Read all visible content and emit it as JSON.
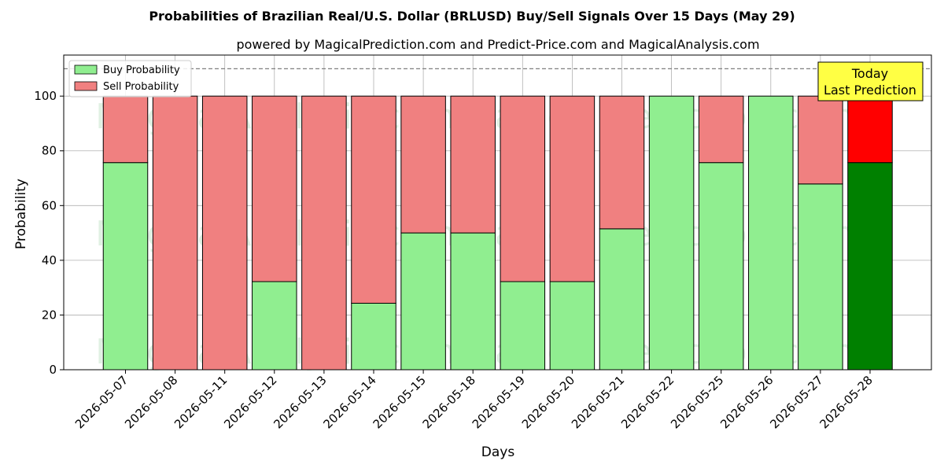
{
  "title": "Probabilities of Brazilian Real/U.S. Dollar (BRLUSD) Buy/Sell Signals Over 15 Days (May 29)",
  "subtitle": "powered by MagicalPrediction.com and Predict-Price.com and MagicalAnalysis.com",
  "watermark_texts": [
    "MagicalAnalysis.com",
    "MagicalPrediction.com"
  ],
  "annotation": {
    "line1": "Today",
    "line2": "Last Prediction"
  },
  "colors": {
    "buy": "#90ee90",
    "sell": "#f08080",
    "buy_today": "#008000",
    "sell_today": "#ff0000",
    "annotation_bg": "#ffff44"
  },
  "chart_data": {
    "type": "bar",
    "stacked": true,
    "xlabel": "Days",
    "ylabel": "Probability",
    "ylim": [
      0,
      115
    ],
    "yticks": [
      0,
      20,
      40,
      60,
      80,
      100
    ],
    "reference_line": 110,
    "grid": true,
    "legend_position": "top-left",
    "categories": [
      "2026-05-07",
      "2026-05-08",
      "2026-05-11",
      "2026-05-12",
      "2026-05-13",
      "2026-05-14",
      "2026-05-15",
      "2026-05-18",
      "2026-05-19",
      "2026-05-20",
      "2026-05-21",
      "2026-05-22",
      "2026-05-25",
      "2026-05-26",
      "2026-05-27",
      "2026-05-28"
    ],
    "series": [
      {
        "name": "Buy Probability",
        "values": [
          75.7,
          0,
          0,
          32.2,
          0,
          24.3,
          50,
          50,
          32.2,
          32.2,
          51.5,
          100,
          75.7,
          100,
          67.9,
          75.7
        ]
      },
      {
        "name": "Sell Probability",
        "values": [
          24.3,
          100,
          100,
          67.8,
          100,
          75.7,
          50,
          50,
          67.8,
          67.8,
          48.5,
          0,
          24.3,
          0,
          32.1,
          24.3
        ]
      }
    ]
  }
}
